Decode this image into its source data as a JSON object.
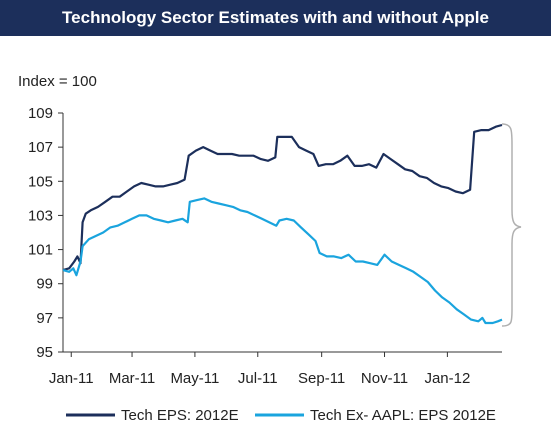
{
  "chart_data": {
    "type": "line",
    "title": "Technology Sector Estimates with and without Apple",
    "ylabel": "Index = 100",
    "xlabel": "",
    "ylim": [
      95,
      109
    ],
    "yticks": [
      95,
      97,
      99,
      101,
      103,
      105,
      107,
      109
    ],
    "xlim": [
      "2010-12-24",
      "2012-02-23"
    ],
    "xticks": [
      {
        "label": "Jan-11",
        "date": "2011-01-01"
      },
      {
        "label": "Mar-11",
        "date": "2011-03-01"
      },
      {
        "label": "May-11",
        "date": "2011-05-01"
      },
      {
        "label": "Jul-11",
        "date": "2011-07-01"
      },
      {
        "label": "Sep-11",
        "date": "2011-09-01"
      },
      {
        "label": "Nov-11",
        "date": "2011-11-01"
      },
      {
        "label": "Jan-12",
        "date": "2012-01-01"
      }
    ],
    "grid": false,
    "legend_position": "bottom",
    "series": [
      {
        "name": "Tech EPS: 2012E",
        "color": "#1c2f5b",
        "points": [
          [
            "2010-12-24",
            99.8
          ],
          [
            "2010-12-30",
            99.9
          ],
          [
            "2011-01-04",
            100.3
          ],
          [
            "2011-01-07",
            100.6
          ],
          [
            "2011-01-10",
            100.2
          ],
          [
            "2011-01-12",
            102.6
          ],
          [
            "2011-01-15",
            103.1
          ],
          [
            "2011-01-20",
            103.3
          ],
          [
            "2011-01-27",
            103.5
          ],
          [
            "2011-02-03",
            103.8
          ],
          [
            "2011-02-10",
            104.1
          ],
          [
            "2011-02-17",
            104.1
          ],
          [
            "2011-02-24",
            104.4
          ],
          [
            "2011-03-03",
            104.7
          ],
          [
            "2011-03-10",
            104.9
          ],
          [
            "2011-03-17",
            104.8
          ],
          [
            "2011-03-24",
            104.7
          ],
          [
            "2011-03-31",
            104.7
          ],
          [
            "2011-04-07",
            104.8
          ],
          [
            "2011-04-14",
            104.9
          ],
          [
            "2011-04-21",
            105.1
          ],
          [
            "2011-04-25",
            106.5
          ],
          [
            "2011-05-02",
            106.8
          ],
          [
            "2011-05-09",
            107.0
          ],
          [
            "2011-05-16",
            106.8
          ],
          [
            "2011-05-23",
            106.6
          ],
          [
            "2011-05-30",
            106.6
          ],
          [
            "2011-06-06",
            106.6
          ],
          [
            "2011-06-13",
            106.5
          ],
          [
            "2011-06-20",
            106.5
          ],
          [
            "2011-06-27",
            106.5
          ],
          [
            "2011-07-04",
            106.3
          ],
          [
            "2011-07-11",
            106.2
          ],
          [
            "2011-07-18",
            106.4
          ],
          [
            "2011-07-20",
            107.6
          ],
          [
            "2011-07-27",
            107.6
          ],
          [
            "2011-08-03",
            107.6
          ],
          [
            "2011-08-10",
            107.0
          ],
          [
            "2011-08-17",
            106.8
          ],
          [
            "2011-08-24",
            106.6
          ],
          [
            "2011-08-29",
            105.9
          ],
          [
            "2011-09-05",
            106.0
          ],
          [
            "2011-09-12",
            106.0
          ],
          [
            "2011-09-19",
            106.2
          ],
          [
            "2011-09-26",
            106.5
          ],
          [
            "2011-10-03",
            105.9
          ],
          [
            "2011-10-10",
            105.9
          ],
          [
            "2011-10-17",
            106.0
          ],
          [
            "2011-10-24",
            105.8
          ],
          [
            "2011-10-31",
            106.6
          ],
          [
            "2011-11-07",
            106.3
          ],
          [
            "2011-11-14",
            106.0
          ],
          [
            "2011-11-21",
            105.7
          ],
          [
            "2011-11-28",
            105.6
          ],
          [
            "2011-12-05",
            105.3
          ],
          [
            "2011-12-12",
            105.2
          ],
          [
            "2011-12-19",
            104.9
          ],
          [
            "2011-12-26",
            104.7
          ],
          [
            "2012-01-02",
            104.6
          ],
          [
            "2012-01-09",
            104.4
          ],
          [
            "2012-01-16",
            104.3
          ],
          [
            "2012-01-23",
            104.5
          ],
          [
            "2012-01-27",
            107.9
          ],
          [
            "2012-02-03",
            108.0
          ],
          [
            "2012-02-10",
            108.0
          ],
          [
            "2012-02-17",
            108.2
          ],
          [
            "2012-02-23",
            108.3
          ]
        ]
      },
      {
        "name": "Tech Ex- AAPL: EPS 2012E",
        "color": "#1aa4de",
        "points": [
          [
            "2010-12-24",
            99.8
          ],
          [
            "2010-12-30",
            99.7
          ],
          [
            "2011-01-03",
            99.9
          ],
          [
            "2011-01-06",
            99.5
          ],
          [
            "2011-01-10",
            100.3
          ],
          [
            "2011-01-12",
            101.2
          ],
          [
            "2011-01-18",
            101.6
          ],
          [
            "2011-01-25",
            101.8
          ],
          [
            "2011-02-01",
            102.0
          ],
          [
            "2011-02-08",
            102.3
          ],
          [
            "2011-02-15",
            102.4
          ],
          [
            "2011-02-22",
            102.6
          ],
          [
            "2011-03-01",
            102.8
          ],
          [
            "2011-03-08",
            103.0
          ],
          [
            "2011-03-15",
            103.0
          ],
          [
            "2011-03-22",
            102.8
          ],
          [
            "2011-03-29",
            102.7
          ],
          [
            "2011-04-05",
            102.6
          ],
          [
            "2011-04-12",
            102.7
          ],
          [
            "2011-04-19",
            102.8
          ],
          [
            "2011-04-24",
            102.6
          ],
          [
            "2011-04-26",
            103.8
          ],
          [
            "2011-05-03",
            103.9
          ],
          [
            "2011-05-10",
            104.0
          ],
          [
            "2011-05-17",
            103.8
          ],
          [
            "2011-05-24",
            103.7
          ],
          [
            "2011-05-31",
            103.6
          ],
          [
            "2011-06-07",
            103.5
          ],
          [
            "2011-06-14",
            103.3
          ],
          [
            "2011-06-21",
            103.2
          ],
          [
            "2011-06-28",
            103.0
          ],
          [
            "2011-07-05",
            102.8
          ],
          [
            "2011-07-12",
            102.6
          ],
          [
            "2011-07-19",
            102.4
          ],
          [
            "2011-07-22",
            102.7
          ],
          [
            "2011-07-29",
            102.8
          ],
          [
            "2011-08-05",
            102.7
          ],
          [
            "2011-08-12",
            102.3
          ],
          [
            "2011-08-19",
            101.9
          ],
          [
            "2011-08-26",
            101.5
          ],
          [
            "2011-08-30",
            100.8
          ],
          [
            "2011-09-06",
            100.6
          ],
          [
            "2011-09-13",
            100.6
          ],
          [
            "2011-09-20",
            100.5
          ],
          [
            "2011-09-27",
            100.7
          ],
          [
            "2011-10-04",
            100.3
          ],
          [
            "2011-10-11",
            100.3
          ],
          [
            "2011-10-18",
            100.2
          ],
          [
            "2011-10-25",
            100.1
          ],
          [
            "2011-11-01",
            100.7
          ],
          [
            "2011-11-08",
            100.3
          ],
          [
            "2011-11-15",
            100.1
          ],
          [
            "2011-11-22",
            99.9
          ],
          [
            "2011-11-29",
            99.7
          ],
          [
            "2011-12-06",
            99.4
          ],
          [
            "2011-12-13",
            99.1
          ],
          [
            "2011-12-20",
            98.6
          ],
          [
            "2011-12-27",
            98.2
          ],
          [
            "2012-01-03",
            97.9
          ],
          [
            "2012-01-10",
            97.5
          ],
          [
            "2012-01-17",
            97.2
          ],
          [
            "2012-01-24",
            96.9
          ],
          [
            "2012-01-31",
            96.8
          ],
          [
            "2012-02-04",
            97.0
          ],
          [
            "2012-02-07",
            96.7
          ],
          [
            "2012-02-14",
            96.7
          ],
          [
            "2012-02-19",
            96.8
          ],
          [
            "2012-02-23",
            96.9
          ]
        ]
      }
    ]
  }
}
